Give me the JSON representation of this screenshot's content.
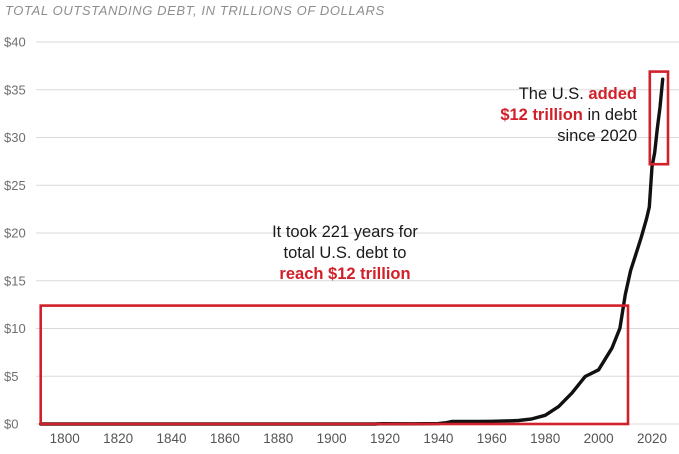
{
  "chart_data": {
    "type": "line",
    "title": "TOTAL OUTSTANDING DEBT, IN TRILLIONS OF DOLLARS",
    "xlabel": "",
    "ylabel": "",
    "xlim": [
      1787,
      2026
    ],
    "ylim": [
      0,
      40
    ],
    "x_ticks": [
      1800,
      1820,
      1840,
      1860,
      1880,
      1900,
      1920,
      1940,
      1960,
      1980,
      2000,
      2020
    ],
    "y_ticks": [
      0,
      5,
      10,
      15,
      20,
      25,
      30,
      35,
      40
    ],
    "y_tick_labels": [
      "$0",
      "$5",
      "$10",
      "$15",
      "$20",
      "$25",
      "$30",
      "$35",
      "$40"
    ],
    "grid": true,
    "legend": "none",
    "line_color": "#111111",
    "accent_color": "#d1202a",
    "grid_color": "#dadada",
    "x": [
      1791,
      1800,
      1810,
      1820,
      1830,
      1840,
      1850,
      1860,
      1865,
      1870,
      1880,
      1890,
      1900,
      1910,
      1916,
      1919,
      1930,
      1940,
      1943,
      1945,
      1950,
      1955,
      1960,
      1965,
      1970,
      1975,
      1980,
      1985,
      1990,
      1995,
      2000,
      2005,
      2008,
      2010,
      2012,
      2014,
      2016,
      2018,
      2019,
      2020,
      2021,
      2022,
      2023,
      2024
    ],
    "values": [
      7.5e-05,
      8.3e-05,
      5.3e-05,
      9.1e-05,
      3.9e-05,
      4e-06,
      6.3e-05,
      6.5e-05,
      0.0027,
      0.0024,
      0.0021,
      0.0011,
      0.0021,
      0.0026,
      0.0036,
      0.027,
      0.016,
      0.043,
      0.136,
      0.259,
      0.257,
      0.274,
      0.286,
      0.317,
      0.371,
      0.533,
      0.908,
      1.823,
      3.233,
      4.974,
      5.674,
      7.933,
      10.025,
      13.562,
      16.066,
      17.824,
      19.573,
      21.516,
      22.719,
      26.945,
      28.429,
      30.928,
      33.167,
      36.1
    ],
    "boxes": [
      {
        "name": "box-221-years",
        "x0": 1791,
        "x1": 2011,
        "y0": 0,
        "y1": 12.4
      },
      {
        "name": "box-since-2020",
        "x0": 2019.2,
        "x1": 2026,
        "y0": 27.2,
        "y1": 36.9
      }
    ],
    "annotations": {
      "took_221": {
        "line1": "It took 221 years for",
        "line2": "total U.S. debt to",
        "line3": "reach $12 trillion"
      },
      "since_2020": {
        "seg_plain1": "The U.S.",
        "seg_red1": "added",
        "seg_red2": "$12 trillion",
        "seg_plain2": "in debt",
        "seg_plain3": "since 2020"
      }
    }
  }
}
